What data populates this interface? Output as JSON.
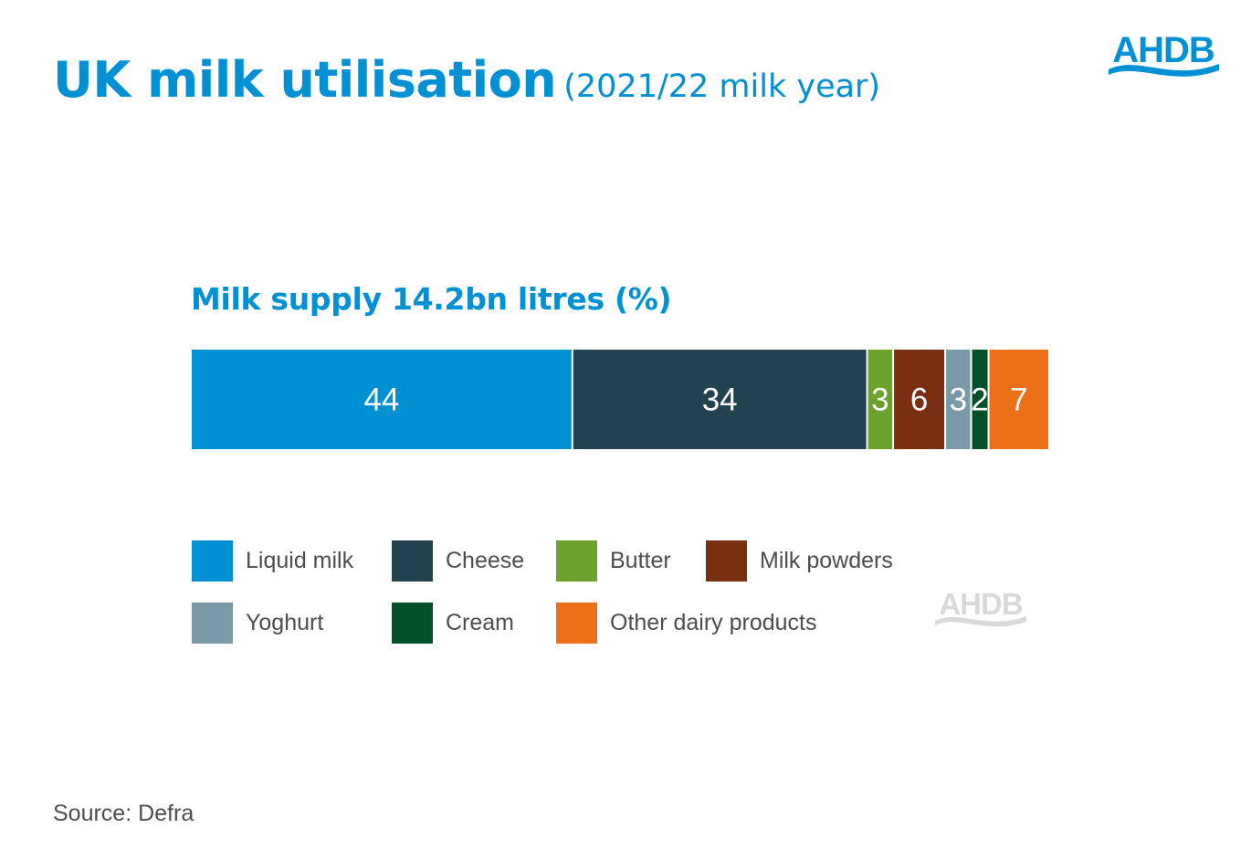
{
  "header": {
    "title": "UK milk utilisation",
    "subtitle": "(2021/22 milk year)"
  },
  "logo": {
    "text": "AHDB",
    "color": "#0090d4"
  },
  "watermark": {
    "text": "AHDB",
    "color": "#d9d9d9"
  },
  "chart_data": {
    "type": "bar",
    "orientation": "horizontal-stacked-100",
    "title": "Milk supply 14.2bn litres (%)",
    "categories": [
      "Milk supply 14.2bn litres"
    ],
    "series": [
      {
        "name": "Liquid milk",
        "values": [
          44
        ],
        "color": "#0090d4"
      },
      {
        "name": "Cheese",
        "values": [
          34
        ],
        "color": "#21424f"
      },
      {
        "name": "Butter",
        "values": [
          3
        ],
        "color": "#6ba32e"
      },
      {
        "name": "Milk powders",
        "values": [
          6
        ],
        "color": "#7a2e12"
      },
      {
        "name": "Yoghurt",
        "values": [
          3
        ],
        "color": "#7b9aa8"
      },
      {
        "name": "Cream",
        "values": [
          2
        ],
        "color": "#00502a"
      },
      {
        "name": "Other dairy products",
        "values": [
          7
        ],
        "color": "#ec7018"
      }
    ],
    "data_labels": [
      "44",
      "34",
      "3",
      "6",
      "3",
      "2",
      "7"
    ],
    "legend_position": "bottom",
    "grid": false
  },
  "source": "Source: Defra"
}
